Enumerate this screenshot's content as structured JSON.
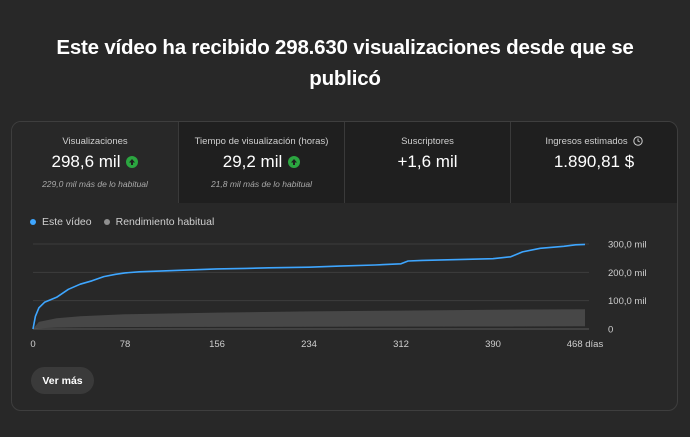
{
  "headline": "Este vídeo ha recibido 298.630 visualizaciones desde que se publicó",
  "metrics": [
    {
      "label": "Visualizaciones",
      "value": "298,6 mil",
      "sub": "229,0 mil más de lo habitual",
      "trend": "up"
    },
    {
      "label": "Tiempo de visualización (horas)",
      "value": "29,2 mil",
      "sub": "21,8 mil más de lo habitual",
      "trend": "up"
    },
    {
      "label": "Suscriptores",
      "value": "+1,6 mil",
      "sub": ""
    },
    {
      "label": "Ingresos estimados",
      "value": "1.890,81 $",
      "sub": "",
      "icon": "clock-icon"
    }
  ],
  "button": {
    "label": "Ver más"
  },
  "colors": {
    "series": "#3ea6ff",
    "typical": "#909090",
    "trend_up": "#2ba640"
  },
  "chart_data": {
    "type": "line",
    "xlabel": "",
    "ylabel": "",
    "x_ticks": [
      "0",
      "78",
      "156",
      "234",
      "312",
      "390",
      "468 días"
    ],
    "y_ticks": [
      "0",
      "100,0 mil",
      "200,0 mil",
      "300,0 mil"
    ],
    "xlim": [
      0,
      468
    ],
    "ylim": [
      0,
      300000
    ],
    "grid": true,
    "legend_position": "top-left",
    "series": [
      {
        "name": "Este vídeo",
        "x": [
          0,
          2,
          5,
          10,
          20,
          30,
          40,
          50,
          60,
          70,
          78,
          90,
          110,
          130,
          156,
          180,
          200,
          234,
          260,
          290,
          312,
          318,
          330,
          360,
          390,
          405,
          415,
          430,
          450,
          460,
          468
        ],
        "y": [
          0,
          45000,
          75000,
          95000,
          112000,
          140000,
          158000,
          170000,
          185000,
          193000,
          198000,
          202000,
          205000,
          208000,
          212000,
          214000,
          216000,
          218000,
          222000,
          226000,
          230000,
          240000,
          242000,
          245000,
          248000,
          255000,
          272000,
          285000,
          292000,
          297000,
          298630
        ]
      },
      {
        "name": "Rendimiento habitual",
        "x": [
          0,
          5,
          20,
          40,
          78,
          156,
          234,
          312,
          390,
          468
        ],
        "low": [
          0,
          3000,
          5000,
          6000,
          7000,
          7500,
          8000,
          8500,
          9000,
          9500
        ],
        "high": [
          0,
          25000,
          38000,
          45000,
          52000,
          58000,
          62000,
          65000,
          68000,
          70000
        ]
      }
    ]
  }
}
